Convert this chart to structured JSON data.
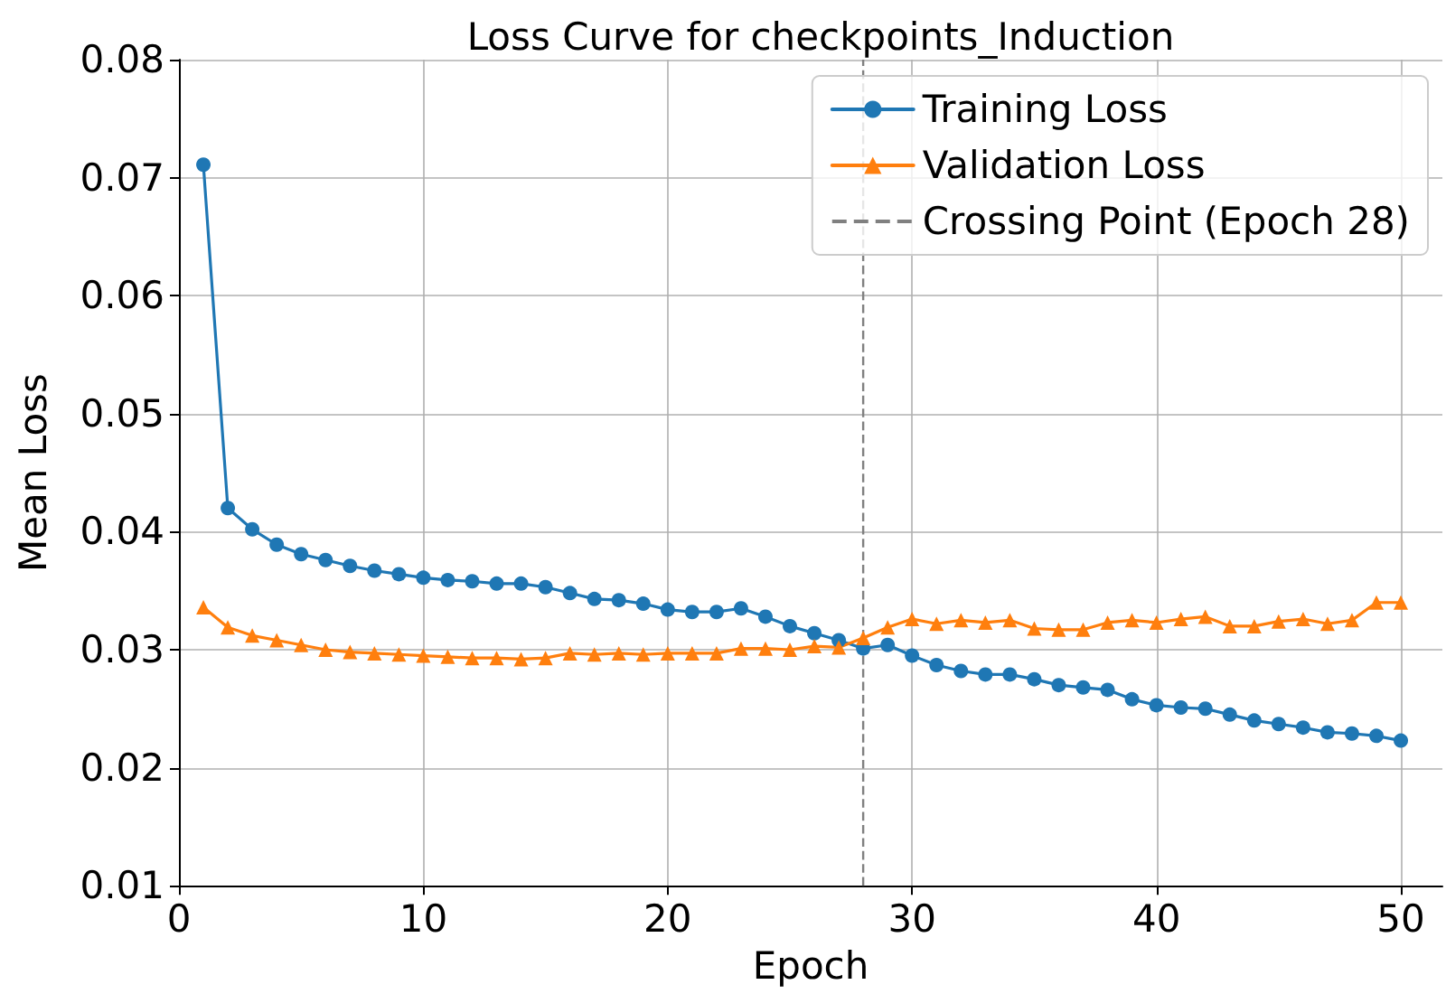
{
  "chart_data": {
    "type": "line",
    "title": "Loss Curve for checkpoints_Induction",
    "xlabel": "Epoch",
    "ylabel": "Mean Loss",
    "x": [
      1,
      2,
      3,
      4,
      5,
      6,
      7,
      8,
      9,
      10,
      11,
      12,
      13,
      14,
      15,
      16,
      17,
      18,
      19,
      20,
      21,
      22,
      23,
      24,
      25,
      26,
      27,
      28,
      29,
      30,
      31,
      32,
      33,
      34,
      35,
      36,
      37,
      38,
      39,
      40,
      41,
      42,
      43,
      44,
      45,
      46,
      47,
      48,
      49,
      50
    ],
    "series": [
      {
        "name": "Training Loss",
        "color": "#1f77b4",
        "marker": "circle",
        "values": [
          0.0711,
          0.042,
          0.0402,
          0.0389,
          0.0381,
          0.0376,
          0.0371,
          0.0367,
          0.0364,
          0.0361,
          0.0359,
          0.0358,
          0.0356,
          0.0356,
          0.0353,
          0.0348,
          0.0343,
          0.0342,
          0.0339,
          0.0334,
          0.0332,
          0.0332,
          0.0335,
          0.0328,
          0.032,
          0.0314,
          0.0308,
          0.0301,
          0.0304,
          0.0295,
          0.0287,
          0.0282,
          0.0279,
          0.0279,
          0.0275,
          0.027,
          0.0268,
          0.0266,
          0.0258,
          0.0253,
          0.0251,
          0.025,
          0.0245,
          0.024,
          0.0237,
          0.0234,
          0.023,
          0.0229,
          0.0227,
          0.0223
        ]
      },
      {
        "name": "Validation Loss",
        "color": "#ff7f0e",
        "marker": "triangle",
        "values": [
          0.0336,
          0.0319,
          0.0312,
          0.0308,
          0.0304,
          0.03,
          0.0298,
          0.0297,
          0.0296,
          0.0295,
          0.0294,
          0.0293,
          0.0293,
          0.0292,
          0.0293,
          0.0297,
          0.0296,
          0.0297,
          0.0296,
          0.0297,
          0.0297,
          0.0297,
          0.0301,
          0.0301,
          0.03,
          0.0303,
          0.0302,
          0.031,
          0.0319,
          0.0326,
          0.0322,
          0.0325,
          0.0323,
          0.0325,
          0.0318,
          0.0317,
          0.0317,
          0.0323,
          0.0325,
          0.0323,
          0.0326,
          0.0328,
          0.032,
          0.032,
          0.0324,
          0.0326,
          0.0322,
          0.0325,
          0.034,
          0.034
        ]
      }
    ],
    "ref_lines": [
      {
        "axis": "x",
        "value": 28,
        "label": "Crossing Point (Epoch 28)",
        "color": "#808080",
        "line_style": "dashed"
      }
    ],
    "xlim": [
      0,
      51.7
    ],
    "xticks": [
      0,
      10,
      20,
      30,
      40,
      50
    ],
    "ylim": [
      0.01,
      0.08
    ],
    "yticks": [
      0.01,
      0.02,
      0.03,
      0.04,
      0.05,
      0.06,
      0.07,
      0.08
    ],
    "grid": true,
    "legend": "top right",
    "line_style": "solid"
  }
}
